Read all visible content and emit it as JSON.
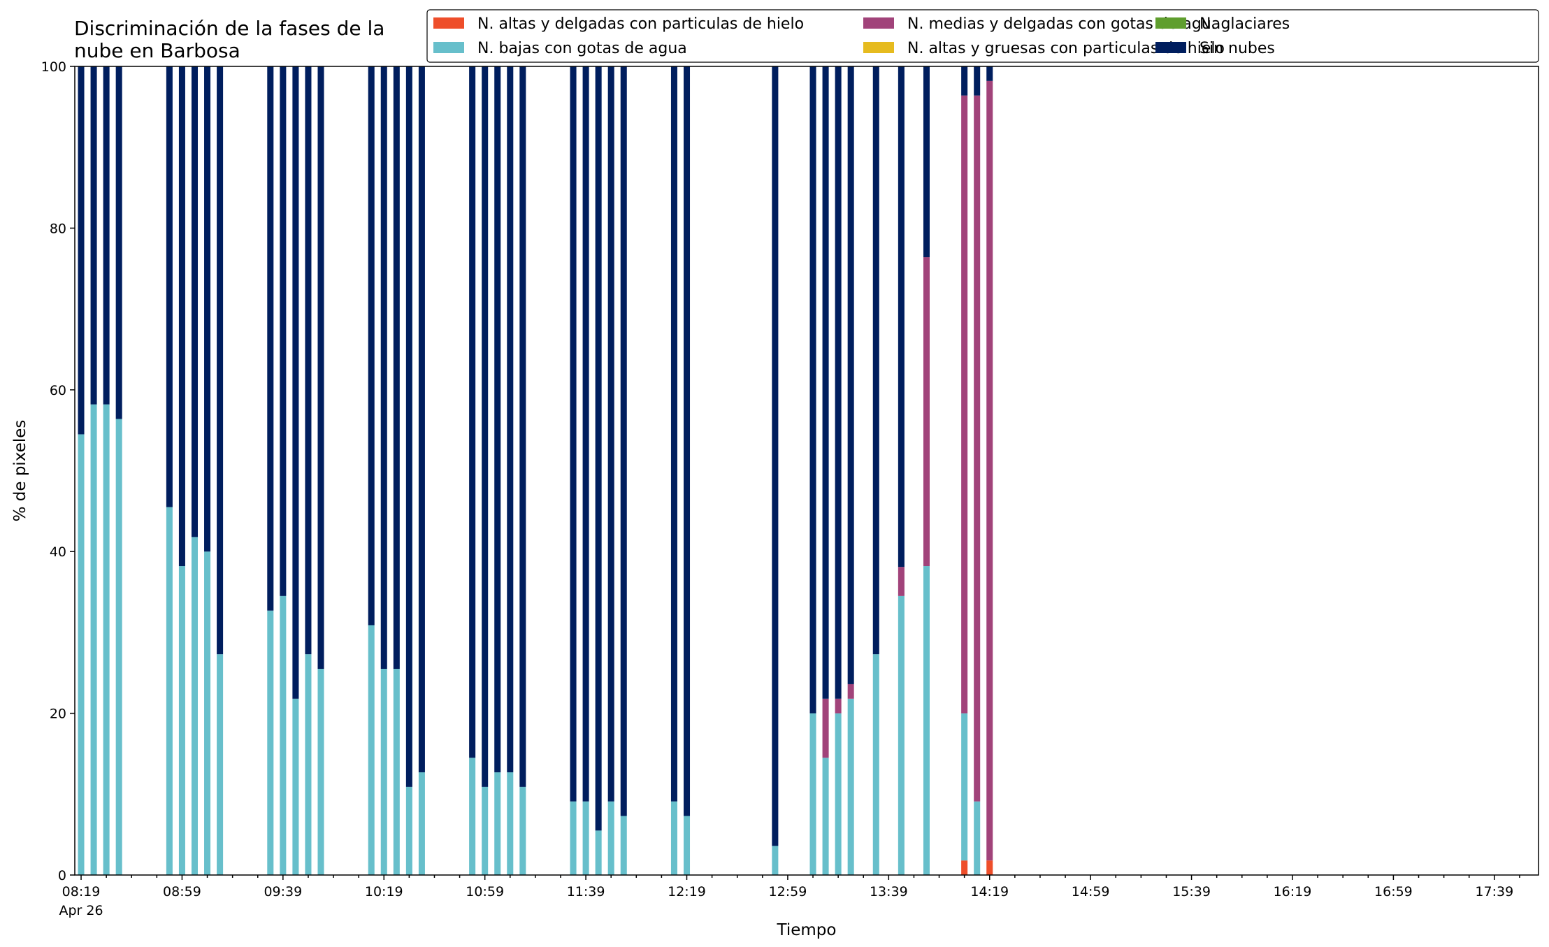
{
  "chart_data": {
    "type": "bar",
    "stacked": true,
    "title_lines": [
      "Discriminación de la fases de la",
      "nube en Barbosa"
    ],
    "xlabel": "Tiempo",
    "ylabel": "% de pixeles",
    "ylim": [
      0,
      100
    ],
    "yticks": [
      0,
      20,
      40,
      60,
      80,
      100
    ],
    "date_label": "Apr 26",
    "x_start": "08:19",
    "x_end": "17:54",
    "slot_minutes": 10,
    "x_ticks": [
      "08:19",
      "08:59",
      "09:39",
      "10:19",
      "10:59",
      "11:39",
      "12:19",
      "12:59",
      "13:39",
      "14:19",
      "14:59",
      "15:39",
      "16:19",
      "16:59",
      "17:39"
    ],
    "grid": false,
    "legend_location": "top-right",
    "series": [
      {
        "name": "N. altas y delgadas con particulas de hielo",
        "color": "#ee4e2a"
      },
      {
        "name": "N. altas y gruesas con particulas de hielo",
        "color": "#e6bb1f"
      },
      {
        "name": "N. bajas con gotas de agua",
        "color": "#67bfcb"
      },
      {
        "name": "N. glaciares",
        "color": "#5f9e2e"
      },
      {
        "name": "N. medias y delgadas con gotas de agua",
        "color": "#a1437a"
      },
      {
        "name": "Sin nubes",
        "color": "#001e5e"
      }
    ],
    "legend_order": [
      0,
      2,
      4,
      1,
      3,
      5
    ],
    "bars": [
      {
        "time": "08:19",
        "values": [
          0,
          0,
          54.5,
          0,
          0,
          45.5
        ]
      },
      {
        "time": "08:24",
        "values": [
          0,
          0,
          58.2,
          0,
          0,
          41.8
        ]
      },
      {
        "time": "08:29",
        "values": [
          0,
          0,
          58.2,
          0,
          0,
          41.8
        ]
      },
      {
        "time": "08:34",
        "values": [
          0,
          0,
          56.4,
          0,
          0,
          43.6
        ]
      },
      {
        "time": "08:54",
        "values": [
          0,
          0,
          45.5,
          0,
          0,
          54.5
        ]
      },
      {
        "time": "08:59",
        "values": [
          0,
          0,
          38.2,
          0,
          0,
          61.8
        ]
      },
      {
        "time": "09:04",
        "values": [
          0,
          0,
          41.8,
          0,
          0,
          58.2
        ]
      },
      {
        "time": "09:09",
        "values": [
          0,
          0,
          40.0,
          0,
          0,
          60.0
        ]
      },
      {
        "time": "09:14",
        "values": [
          0,
          0,
          27.3,
          0,
          0,
          72.7
        ]
      },
      {
        "time": "09:34",
        "values": [
          0,
          0,
          32.7,
          0,
          0,
          67.3
        ]
      },
      {
        "time": "09:39",
        "values": [
          0,
          0,
          34.5,
          0,
          0,
          65.5
        ]
      },
      {
        "time": "09:44",
        "values": [
          0,
          0,
          21.8,
          0,
          0,
          78.2
        ]
      },
      {
        "time": "09:49",
        "values": [
          0,
          0,
          27.3,
          0,
          0,
          72.7
        ]
      },
      {
        "time": "09:54",
        "values": [
          0,
          0,
          25.5,
          0,
          0,
          74.5
        ]
      },
      {
        "time": "10:14",
        "values": [
          0,
          0,
          30.9,
          0,
          0,
          69.1
        ]
      },
      {
        "time": "10:19",
        "values": [
          0,
          0,
          25.5,
          0,
          0,
          74.5
        ]
      },
      {
        "time": "10:24",
        "values": [
          0,
          0,
          25.5,
          0,
          0,
          74.5
        ]
      },
      {
        "time": "10:29",
        "values": [
          0,
          0,
          10.9,
          0,
          0,
          89.1
        ]
      },
      {
        "time": "10:34",
        "values": [
          0,
          0,
          12.7,
          0,
          0,
          87.3
        ]
      },
      {
        "time": "10:54",
        "values": [
          0,
          0,
          14.5,
          0,
          0,
          85.5
        ]
      },
      {
        "time": "10:59",
        "values": [
          0,
          0,
          10.9,
          0,
          0,
          89.1
        ]
      },
      {
        "time": "11:04",
        "values": [
          0,
          0,
          12.7,
          0,
          0,
          87.3
        ]
      },
      {
        "time": "11:09",
        "values": [
          0,
          0,
          12.7,
          0,
          0,
          87.3
        ]
      },
      {
        "time": "11:14",
        "values": [
          0,
          0,
          10.9,
          0,
          0,
          89.1
        ]
      },
      {
        "time": "11:34",
        "values": [
          0,
          0,
          9.1,
          0,
          0,
          90.9
        ]
      },
      {
        "time": "11:39",
        "values": [
          0,
          0,
          9.1,
          0,
          0,
          90.9
        ]
      },
      {
        "time": "11:44",
        "values": [
          0,
          0,
          5.5,
          0,
          0,
          94.5
        ]
      },
      {
        "time": "11:49",
        "values": [
          0,
          0,
          9.1,
          0,
          0,
          90.9
        ]
      },
      {
        "time": "11:54",
        "values": [
          0,
          0,
          7.3,
          0,
          0,
          92.7
        ]
      },
      {
        "time": "12:14",
        "values": [
          0,
          0,
          9.1,
          0,
          0,
          90.9
        ]
      },
      {
        "time": "12:19",
        "values": [
          0,
          0,
          7.3,
          0,
          0,
          92.7
        ]
      },
      {
        "time": "12:54",
        "values": [
          0,
          0,
          3.6,
          0,
          0,
          96.4
        ]
      },
      {
        "time": "13:09",
        "values": [
          0,
          0,
          20.0,
          0,
          0,
          80.0
        ]
      },
      {
        "time": "13:14",
        "values": [
          0,
          0,
          14.5,
          0,
          7.3,
          78.2
        ]
      },
      {
        "time": "13:19",
        "values": [
          0,
          0,
          20.0,
          0,
          1.8,
          78.2
        ]
      },
      {
        "time": "13:24",
        "values": [
          0,
          0,
          21.8,
          0,
          1.8,
          76.4
        ]
      },
      {
        "time": "13:34",
        "values": [
          0,
          0,
          27.3,
          0,
          0,
          72.7
        ]
      },
      {
        "time": "13:44",
        "values": [
          0,
          0,
          34.5,
          0,
          3.6,
          61.9
        ]
      },
      {
        "time": "13:54",
        "values": [
          0,
          0,
          38.2,
          0,
          38.2,
          23.6
        ]
      },
      {
        "time": "14:09",
        "values": [
          1.8,
          0,
          18.2,
          0,
          76.4,
          3.6
        ]
      },
      {
        "time": "14:14",
        "values": [
          0,
          0,
          9.1,
          0,
          87.3,
          3.6
        ]
      },
      {
        "time": "14:19",
        "values": [
          1.8,
          0,
          0,
          0,
          96.4,
          1.8
        ]
      }
    ]
  }
}
